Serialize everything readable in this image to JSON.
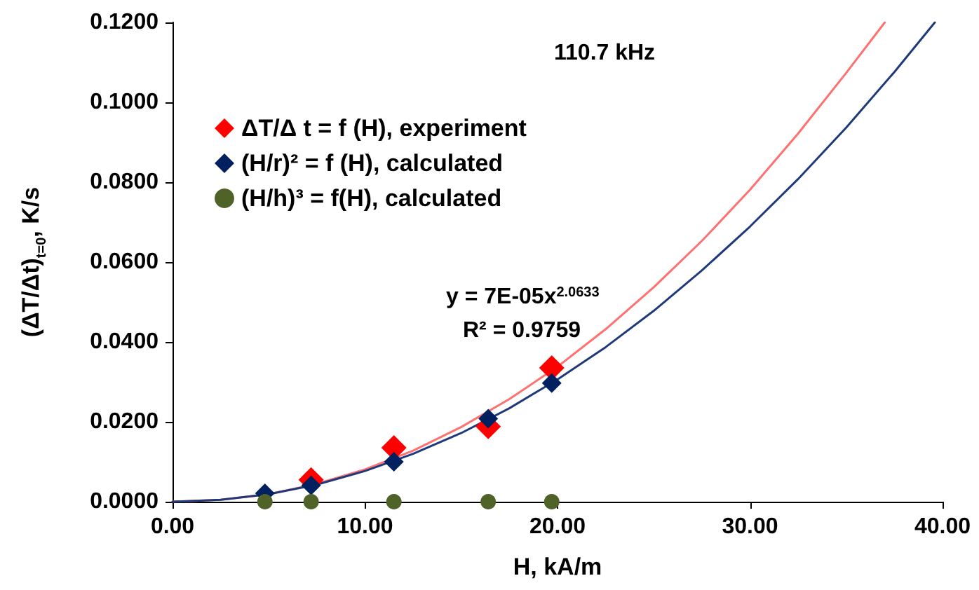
{
  "chart_data": {
    "type": "scatter",
    "xlabel": "H, kA/m",
    "ylabel": "(ΔT/Δt)$_{t=0}$, K/s",
    "xlim": [
      0,
      40
    ],
    "xticks": [
      {
        "value": 0,
        "label": "0.00"
      },
      {
        "value": 10,
        "label": "10.00"
      },
      {
        "value": 20,
        "label": "20.00"
      },
      {
        "value": 30,
        "label": "30.00"
      },
      {
        "value": 40,
        "label": "40.00"
      }
    ],
    "ylim": [
      0,
      0.12
    ],
    "yticks": [
      {
        "value": 0,
        "label": "0.0000"
      },
      {
        "value": 0.02,
        "label": "0.0200"
      },
      {
        "value": 0.04,
        "label": "0.0400"
      },
      {
        "value": 0.06,
        "label": "0.0600"
      },
      {
        "value": 0.08,
        "label": "0.0800"
      },
      {
        "value": 0.1,
        "label": "0.1000"
      },
      {
        "value": 0.12,
        "label": "0.1200"
      }
    ],
    "grid": false,
    "legend": "top left",
    "annotations": [
      "110.7 kHz",
      "y = 7E-05x$^{2.0633}$",
      "R² = 0.9759"
    ],
    "series": [
      {
        "type": "line",
        "marker": "none",
        "color": "#ff7070",
        "x": [
          0,
          2.5,
          5,
          7.5,
          10,
          12.5,
          15,
          17.5,
          20,
          22.5,
          25,
          27.5,
          30,
          32.5,
          35,
          37
        ],
        "values": [
          0,
          0.0005,
          0.0019,
          0.0045,
          0.0081,
          0.0128,
          0.0187,
          0.0257,
          0.0338,
          0.0432,
          0.0537,
          0.0653,
          0.0781,
          0.0922,
          0.1074,
          0.12
        ]
      },
      {
        "type": "line",
        "marker": "none",
        "color": "#1f3a7a",
        "x": [
          0,
          2.5,
          5,
          7.5,
          10,
          12.5,
          15,
          17.5,
          20,
          22.5,
          25,
          27.5,
          30,
          32.5,
          35,
          37.5,
          39.6
        ],
        "values": [
          0,
          0.0005,
          0.0019,
          0.0043,
          0.0077,
          0.012,
          0.0172,
          0.0234,
          0.0306,
          0.0387,
          0.0478,
          0.0579,
          0.0689,
          0.0808,
          0.0937,
          0.1076,
          0.12
        ]
      },
      {
        "name": "ΔT/Δ t = f (H), experiment",
        "marker": "diamond",
        "color": "#ff0000",
        "x": [
          7.2,
          11.5,
          16.4,
          19.7
        ],
        "values": [
          0.0055,
          0.0135,
          0.0188,
          0.0335
        ]
      },
      {
        "name": "(H/r)² = f (H), calculated",
        "marker": "diamond",
        "color": "#002060",
        "x": [
          4.8,
          7.2,
          11.5,
          16.4,
          19.7
        ],
        "values": [
          0.0021,
          0.0041,
          0.01,
          0.0208,
          0.0297
        ]
      },
      {
        "name": "(H/h)³ = f(H), calculated",
        "marker": "circle",
        "color": "#4f6228",
        "x": [
          4.8,
          7.2,
          11.5,
          16.4,
          19.7
        ],
        "values": [
          0,
          0,
          0,
          0,
          0
        ]
      }
    ]
  }
}
